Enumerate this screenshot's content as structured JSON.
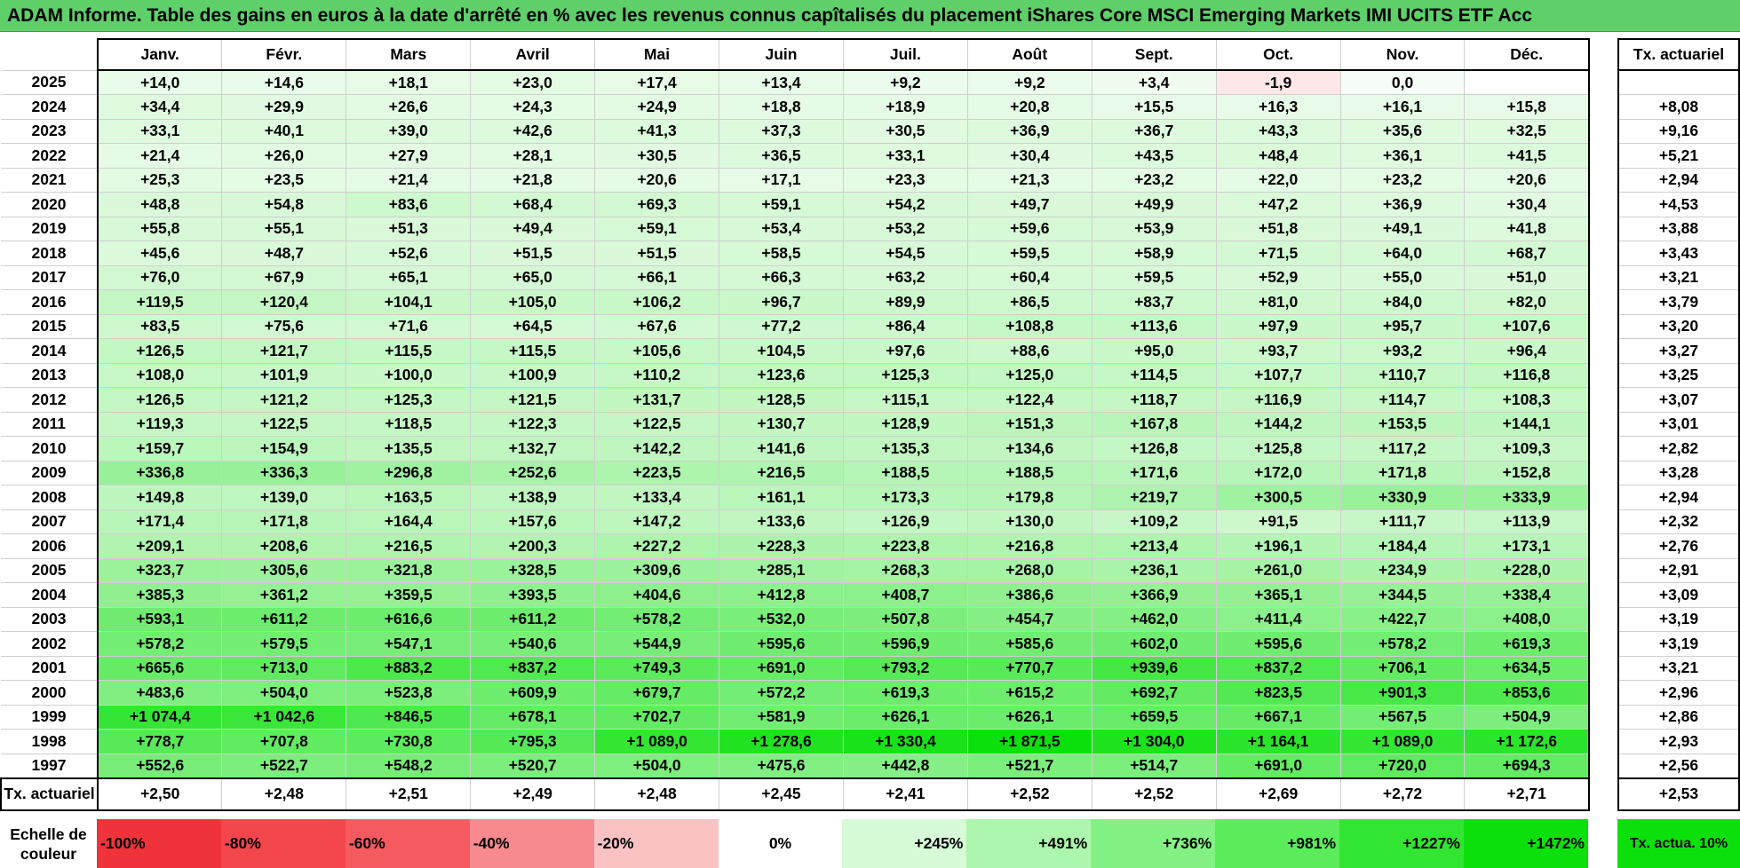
{
  "title": "ADAM Informe. Table des gains en euros à la date d'arrêté en % avec les revenus connus capîtalisés du placement iShares Core MSCI Emerging Markets IMI UCITS ETF Acc",
  "months": [
    "Janv.",
    "Févr.",
    "Mars",
    "Avril",
    "Mai",
    "Juin",
    "Juil.",
    "Août",
    "Sept.",
    "Oct.",
    "Nov.",
    "Déc."
  ],
  "rate_header": "Tx. actuariel",
  "rows": [
    {
      "year": "2025",
      "values": [
        "+14,0",
        "+14,6",
        "+18,1",
        "+23,0",
        "+17,4",
        "+13,4",
        "+9,2",
        "+9,2",
        "+3,4",
        "-1,9",
        "0,0",
        ""
      ],
      "rate": ""
    },
    {
      "year": "2024",
      "values": [
        "+34,4",
        "+29,9",
        "+26,6",
        "+24,3",
        "+24,9",
        "+18,8",
        "+18,9",
        "+20,8",
        "+15,5",
        "+16,3",
        "+16,1",
        "+15,8"
      ],
      "rate": "+8,08"
    },
    {
      "year": "2023",
      "values": [
        "+33,1",
        "+40,1",
        "+39,0",
        "+42,6",
        "+41,3",
        "+37,3",
        "+30,5",
        "+36,9",
        "+36,7",
        "+43,3",
        "+35,6",
        "+32,5"
      ],
      "rate": "+9,16"
    },
    {
      "year": "2022",
      "values": [
        "+21,4",
        "+26,0",
        "+27,9",
        "+28,1",
        "+30,5",
        "+36,5",
        "+33,1",
        "+30,4",
        "+43,5",
        "+48,4",
        "+36,1",
        "+41,5"
      ],
      "rate": "+5,21"
    },
    {
      "year": "2021",
      "values": [
        "+25,3",
        "+23,5",
        "+21,4",
        "+21,8",
        "+20,6",
        "+17,1",
        "+23,3",
        "+21,3",
        "+23,2",
        "+22,0",
        "+23,2",
        "+20,6"
      ],
      "rate": "+2,94"
    },
    {
      "year": "2020",
      "values": [
        "+48,8",
        "+54,8",
        "+83,6",
        "+68,4",
        "+69,3",
        "+59,1",
        "+54,2",
        "+49,7",
        "+49,9",
        "+47,2",
        "+36,9",
        "+30,4"
      ],
      "rate": "+4,53"
    },
    {
      "year": "2019",
      "values": [
        "+55,8",
        "+55,1",
        "+51,3",
        "+49,4",
        "+59,1",
        "+53,4",
        "+53,2",
        "+59,6",
        "+53,9",
        "+51,8",
        "+49,1",
        "+41,8"
      ],
      "rate": "+3,88"
    },
    {
      "year": "2018",
      "values": [
        "+45,6",
        "+48,7",
        "+52,6",
        "+51,5",
        "+51,5",
        "+58,5",
        "+54,5",
        "+59,5",
        "+58,9",
        "+71,5",
        "+64,0",
        "+68,7"
      ],
      "rate": "+3,43"
    },
    {
      "year": "2017",
      "values": [
        "+76,0",
        "+67,9",
        "+65,1",
        "+65,0",
        "+66,1",
        "+66,3",
        "+63,2",
        "+60,4",
        "+59,5",
        "+52,9",
        "+55,0",
        "+51,0"
      ],
      "rate": "+3,21"
    },
    {
      "year": "2016",
      "values": [
        "+119,5",
        "+120,4",
        "+104,1",
        "+105,0",
        "+106,2",
        "+96,7",
        "+89,9",
        "+86,5",
        "+83,7",
        "+81,0",
        "+84,0",
        "+82,0"
      ],
      "rate": "+3,79"
    },
    {
      "year": "2015",
      "values": [
        "+83,5",
        "+75,6",
        "+71,6",
        "+64,5",
        "+67,6",
        "+77,2",
        "+86,4",
        "+108,8",
        "+113,6",
        "+97,9",
        "+95,7",
        "+107,6"
      ],
      "rate": "+3,20"
    },
    {
      "year": "2014",
      "values": [
        "+126,5",
        "+121,7",
        "+115,5",
        "+115,5",
        "+105,6",
        "+104,5",
        "+97,6",
        "+88,6",
        "+95,0",
        "+93,7",
        "+93,2",
        "+96,4"
      ],
      "rate": "+3,27"
    },
    {
      "year": "2013",
      "values": [
        "+108,0",
        "+101,9",
        "+100,0",
        "+100,9",
        "+110,2",
        "+123,6",
        "+125,3",
        "+125,0",
        "+114,5",
        "+107,7",
        "+110,7",
        "+116,8"
      ],
      "rate": "+3,25"
    },
    {
      "year": "2012",
      "values": [
        "+126,5",
        "+121,2",
        "+125,3",
        "+121,5",
        "+131,7",
        "+128,5",
        "+115,1",
        "+122,4",
        "+118,7",
        "+116,9",
        "+114,7",
        "+108,3"
      ],
      "rate": "+3,07"
    },
    {
      "year": "2011",
      "values": [
        "+119,3",
        "+122,5",
        "+118,5",
        "+122,3",
        "+122,5",
        "+130,7",
        "+128,9",
        "+151,3",
        "+167,8",
        "+144,2",
        "+153,5",
        "+144,1"
      ],
      "rate": "+3,01"
    },
    {
      "year": "2010",
      "values": [
        "+159,7",
        "+154,9",
        "+135,5",
        "+132,7",
        "+142,2",
        "+141,6",
        "+135,3",
        "+134,6",
        "+126,8",
        "+125,8",
        "+117,2",
        "+109,3"
      ],
      "rate": "+2,82"
    },
    {
      "year": "2009",
      "values": [
        "+336,8",
        "+336,3",
        "+296,8",
        "+252,6",
        "+223,5",
        "+216,5",
        "+188,5",
        "+188,5",
        "+171,6",
        "+172,0",
        "+171,8",
        "+152,8"
      ],
      "rate": "+3,28"
    },
    {
      "year": "2008",
      "values": [
        "+149,8",
        "+139,0",
        "+163,5",
        "+138,9",
        "+133,4",
        "+161,1",
        "+173,3",
        "+179,8",
        "+219,7",
        "+300,5",
        "+330,9",
        "+333,9"
      ],
      "rate": "+2,94"
    },
    {
      "year": "2007",
      "values": [
        "+171,4",
        "+171,8",
        "+164,4",
        "+157,6",
        "+147,2",
        "+133,6",
        "+126,9",
        "+130,0",
        "+109,2",
        "+91,5",
        "+111,7",
        "+113,9"
      ],
      "rate": "+2,32"
    },
    {
      "year": "2006",
      "values": [
        "+209,1",
        "+208,6",
        "+216,5",
        "+200,3",
        "+227,2",
        "+228,3",
        "+223,8",
        "+216,8",
        "+213,4",
        "+196,1",
        "+184,4",
        "+173,1"
      ],
      "rate": "+2,76"
    },
    {
      "year": "2005",
      "values": [
        "+323,7",
        "+305,6",
        "+321,8",
        "+328,5",
        "+309,6",
        "+285,1",
        "+268,3",
        "+268,0",
        "+236,1",
        "+261,0",
        "+234,9",
        "+228,0"
      ],
      "rate": "+2,91"
    },
    {
      "year": "2004",
      "values": [
        "+385,3",
        "+361,2",
        "+359,5",
        "+393,5",
        "+404,6",
        "+412,8",
        "+408,7",
        "+386,6",
        "+366,9",
        "+365,1",
        "+344,5",
        "+338,4"
      ],
      "rate": "+3,09"
    },
    {
      "year": "2003",
      "values": [
        "+593,1",
        "+611,2",
        "+616,6",
        "+611,2",
        "+578,2",
        "+532,0",
        "+507,8",
        "+454,7",
        "+462,0",
        "+411,4",
        "+422,7",
        "+408,0"
      ],
      "rate": "+3,19"
    },
    {
      "year": "2002",
      "values": [
        "+578,2",
        "+579,5",
        "+547,1",
        "+540,6",
        "+544,9",
        "+595,6",
        "+596,9",
        "+585,6",
        "+602,0",
        "+595,6",
        "+578,2",
        "+619,3"
      ],
      "rate": "+3,19"
    },
    {
      "year": "2001",
      "values": [
        "+665,6",
        "+713,0",
        "+883,2",
        "+837,2",
        "+749,3",
        "+691,0",
        "+793,2",
        "+770,7",
        "+939,6",
        "+837,2",
        "+706,1",
        "+634,5"
      ],
      "rate": "+3,21"
    },
    {
      "year": "2000",
      "values": [
        "+483,6",
        "+504,0",
        "+523,8",
        "+609,9",
        "+679,7",
        "+572,2",
        "+619,3",
        "+615,2",
        "+692,7",
        "+823,5",
        "+901,3",
        "+853,6"
      ],
      "rate": "+2,96"
    },
    {
      "year": "1999",
      "values": [
        "+1 074,4",
        "+1 042,6",
        "+846,5",
        "+678,1",
        "+702,7",
        "+581,9",
        "+626,1",
        "+626,1",
        "+659,5",
        "+667,1",
        "+567,5",
        "+504,9"
      ],
      "rate": "+2,86"
    },
    {
      "year": "1998",
      "values": [
        "+778,7",
        "+707,8",
        "+730,8",
        "+795,3",
        "+1 089,0",
        "+1 278,6",
        "+1 330,4",
        "+1 871,5",
        "+1 304,0",
        "+1 164,1",
        "+1 089,0",
        "+1 172,6"
      ],
      "rate": "+2,93"
    },
    {
      "year": "1997",
      "values": [
        "+552,6",
        "+522,7",
        "+548,2",
        "+520,7",
        "+504,0",
        "+475,6",
        "+442,8",
        "+521,7",
        "+514,7",
        "+691,0",
        "+720,0",
        "+694,3"
      ],
      "rate": "+2,56"
    }
  ],
  "footer": {
    "label": "Tx. actuariel",
    "values": [
      "+2,50",
      "+2,48",
      "+2,51",
      "+2,49",
      "+2,48",
      "+2,45",
      "+2,41",
      "+2,52",
      "+2,52",
      "+2,69",
      "+2,72",
      "+2,71"
    ],
    "rate": "+2,53"
  },
  "scale": {
    "label": "Echelle de couleur",
    "items": [
      {
        "text": "-100%",
        "color": "#f0333b"
      },
      {
        "text": "-80%",
        "color": "#f2464c"
      },
      {
        "text": "-60%",
        "color": "#f45a60"
      },
      {
        "text": "-40%",
        "color": "#f78a8f"
      },
      {
        "text": "-20%",
        "color": "#fbc2c4"
      },
      {
        "text": "0%",
        "color": "#ffffff"
      },
      {
        "text": "+245%",
        "color": "#d6fbd6"
      },
      {
        "text": "+491%",
        "color": "#adf6ad"
      },
      {
        "text": "+736%",
        "color": "#84f184"
      },
      {
        "text": "+981%",
        "color": "#5bec5b"
      },
      {
        "text": "+1227%",
        "color": "#32e532"
      },
      {
        "text": "+1472%",
        "color": "#0ce00c"
      }
    ],
    "side": {
      "text": "Tx. actua. 10%",
      "color": "#0ce00c"
    }
  },
  "colors": {
    "title_bg": "#5fcf6a",
    "max_pct": 1472,
    "max_green": "#0ce00c",
    "min_red": "#f0333b"
  }
}
